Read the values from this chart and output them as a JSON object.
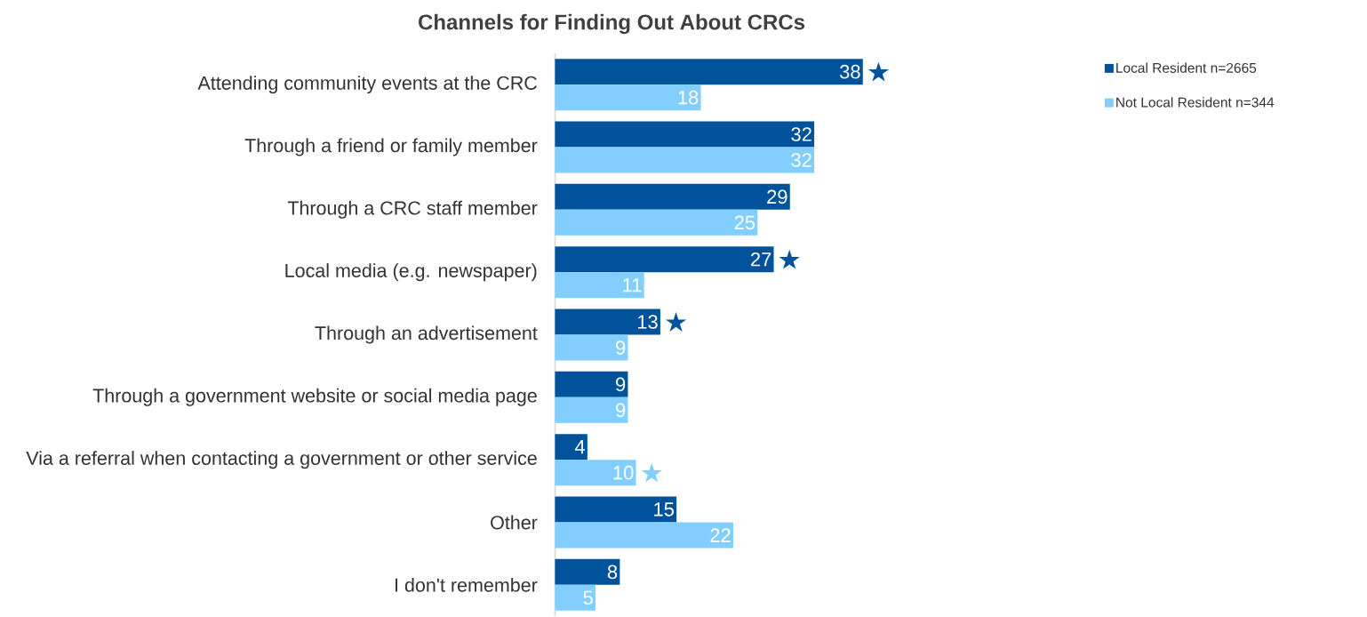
{
  "chart_data": {
    "type": "bar",
    "orientation": "horizontal",
    "title": "Channels for Finding Out About CRCs",
    "categories": [
      "Attending community events at the CRC",
      "Through a friend or family member",
      "Through a CRC staff member",
      "Local media (e.g. newspaper)",
      "Through an advertisement",
      "Through a government website or social media page",
      "Via a referral when contacting a government or other service",
      "Other",
      "I don't remember"
    ],
    "series": [
      {
        "name": "Local Resident n=2665",
        "color": "#00539b",
        "values": [
          38,
          32,
          29,
          27,
          13,
          9,
          4,
          15,
          8
        ]
      },
      {
        "name": "Not Local Resident n=344",
        "color": "#82cfff",
        "values": [
          18,
          32,
          25,
          11,
          9,
          9,
          10,
          22,
          5
        ]
      }
    ],
    "data_labels": true,
    "legend": "top right",
    "annotations": [
      {
        "text": "★",
        "x": 38,
        "y": "Attending community events at the CRC"
      },
      {
        "text": "★",
        "x": 27,
        "y": "Local media (e.g. newspaper)"
      },
      {
        "text": "★",
        "x": 13,
        "y": "Through an advertisement"
      },
      {
        "text": "★",
        "x": 10,
        "y": "Via a referral when contacting a government or other service"
      }
    ]
  }
}
